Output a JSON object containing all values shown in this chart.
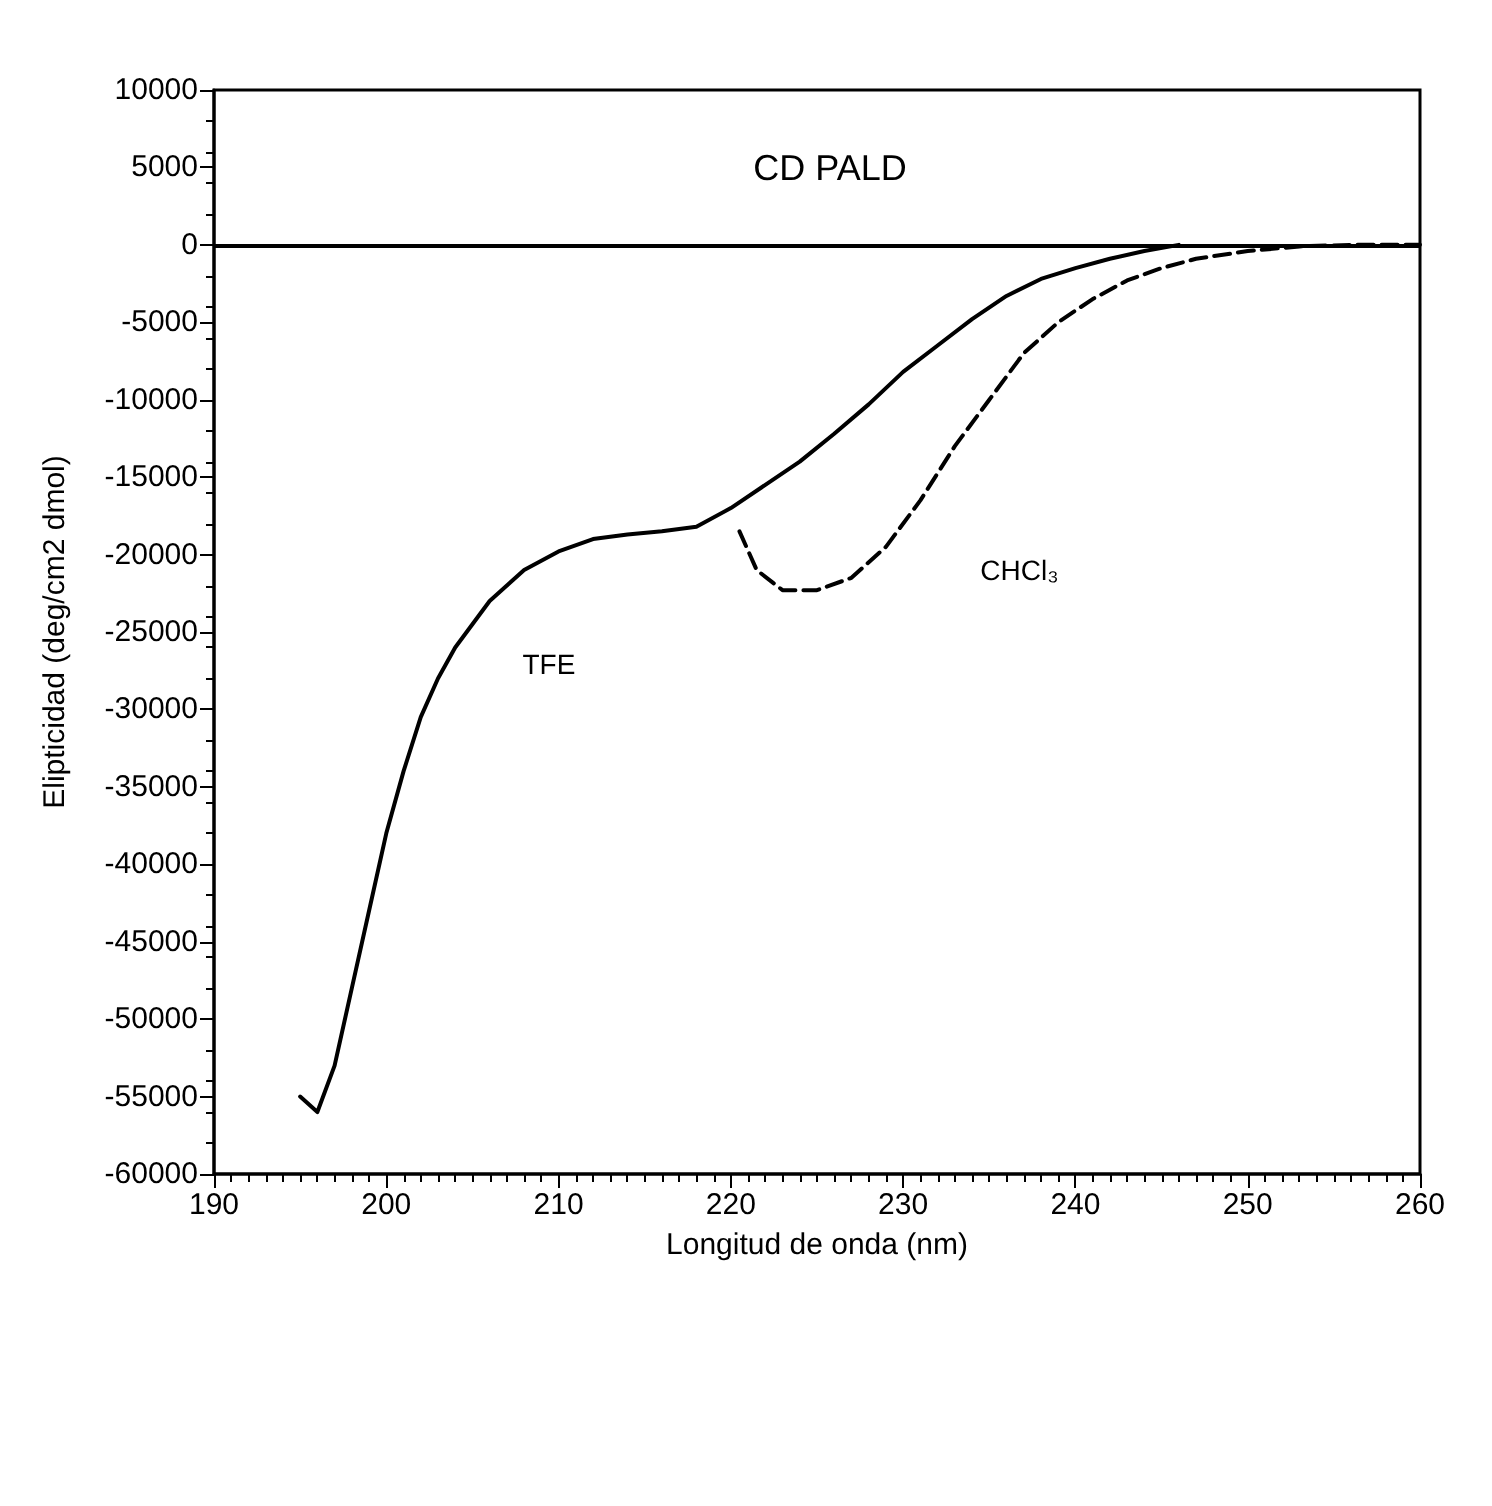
{
  "chart_data": {
    "type": "line",
    "title": "CD PALD",
    "xlabel": "Longitud de onda (nm)",
    "ylabel": "Elipticidad (deg/cm2 dmol)",
    "xlim": [
      190,
      260
    ],
    "xticks": [
      190,
      200,
      210,
      220,
      230,
      240,
      250,
      260
    ],
    "ylim": [
      -60000,
      10000
    ],
    "yticks": [
      -60000,
      -55000,
      -50000,
      -45000,
      -40000,
      -35000,
      -30000,
      -25000,
      -20000,
      -15000,
      -10000,
      -5000,
      0,
      5000,
      10000
    ],
    "grid": false,
    "legend": false,
    "marker": "none",
    "ref_lines": [
      {
        "axis": "y",
        "value": 0,
        "color": "#000000",
        "line_style": "solid"
      }
    ],
    "series": [
      {
        "name": "TFE",
        "color": "#000000",
        "line_style": "solid",
        "x": [
          195,
          196,
          197,
          198,
          199,
          200,
          201,
          202,
          203,
          204,
          205,
          206,
          207,
          208,
          210,
          212,
          214,
          216,
          218,
          220,
          222,
          224,
          226,
          228,
          230,
          232,
          234,
          236,
          238,
          240,
          242,
          244,
          246
        ],
        "values": [
          -55000,
          -56000,
          -53000,
          -48000,
          -43000,
          -38000,
          -34000,
          -30500,
          -28000,
          -26000,
          -24500,
          -23000,
          -22000,
          -21000,
          -19800,
          -19000,
          -18700,
          -18500,
          -18200,
          -17000,
          -15500,
          -14000,
          -12200,
          -10300,
          -8200,
          -6500,
          -4800,
          -3300,
          -2200,
          -1500,
          -900,
          -400,
          0
        ]
      },
      {
        "name": "CHCl₃",
        "color": "#000000",
        "line_style": "dashed",
        "x": [
          220.5,
          221.5,
          223,
          225,
          227,
          229,
          231,
          233,
          235,
          237,
          239,
          241,
          243,
          245,
          247,
          250,
          253,
          256,
          260
        ],
        "values": [
          -18500,
          -21000,
          -22300,
          -22300,
          -21500,
          -19500,
          -16500,
          -13000,
          -10000,
          -7000,
          -5000,
          -3500,
          -2300,
          -1500,
          -900,
          -400,
          -100,
          0,
          0
        ]
      }
    ]
  }
}
